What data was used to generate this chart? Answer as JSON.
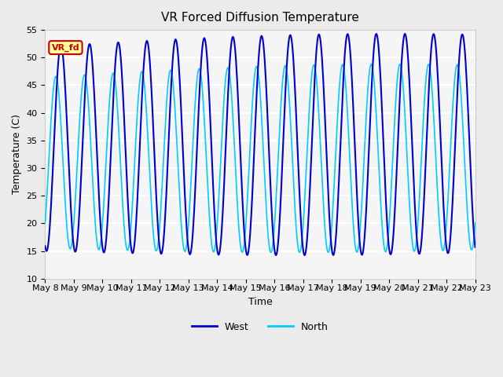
{
  "title": "VR Forced Diffusion Temperature",
  "xlabel": "Time",
  "ylabel": "Temperature (C)",
  "ylim": [
    10,
    55
  ],
  "yticks": [
    10,
    15,
    20,
    25,
    30,
    35,
    40,
    45,
    50,
    55
  ],
  "date_labels": [
    "May 8",
    "May 9",
    "May 10",
    "May 11",
    "May 12",
    "May 13",
    "May 14",
    "May 15",
    "May 16",
    "May 17",
    "May 18",
    "May 19",
    "May 20",
    "May 21",
    "May 22",
    "May 23"
  ],
  "west_color": "#0000CC",
  "north_color": "#00CCFF",
  "bg_color": "#EBEBEB",
  "plot_bg_color": "#F5F5F5",
  "annotation_text": "VR_fd",
  "annotation_bg": "#FFFF99",
  "annotation_border": "#CC0000",
  "legend_west": "West",
  "legend_north": "North",
  "num_days": 15,
  "samples_per_day": 48
}
